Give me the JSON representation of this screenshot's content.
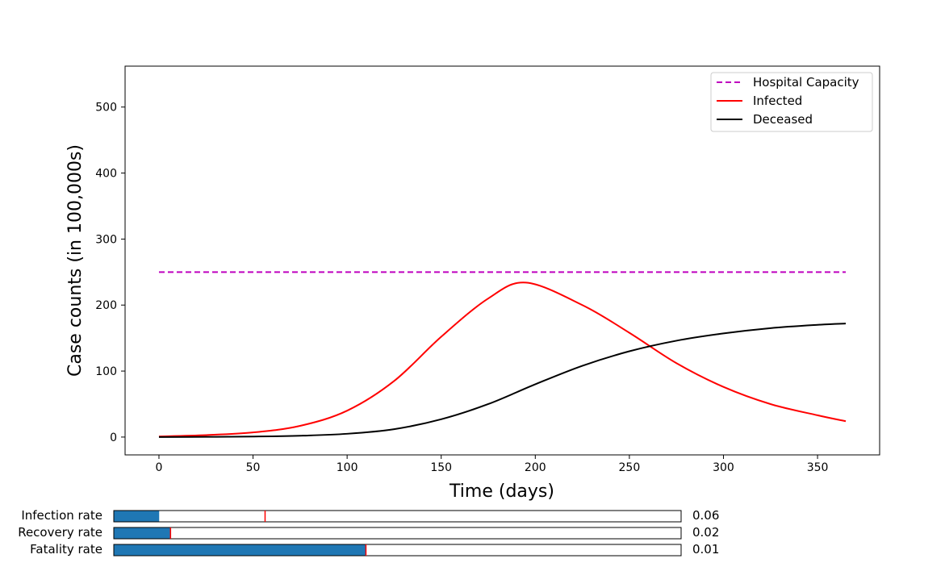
{
  "chart_data": {
    "type": "line",
    "xlabel": "Time (days)",
    "ylabel": "Case counts (in 100,000s)",
    "xlim": [
      -18,
      383
    ],
    "ylim": [
      -27,
      562
    ],
    "x_ticks": [
      0,
      50,
      100,
      150,
      200,
      250,
      300,
      350
    ],
    "y_ticks": [
      0,
      100,
      200,
      300,
      400,
      500
    ],
    "grid": false,
    "legend_position": "top-right",
    "series": [
      {
        "name": "Hospital Capacity",
        "color": "#bf00bf",
        "style": "dashed",
        "x": [
          0,
          365
        ],
        "y": [
          250,
          250
        ]
      },
      {
        "name": "Infected",
        "color": "#ff0000",
        "style": "solid",
        "x": [
          0,
          25,
          50,
          75,
          100,
          125,
          150,
          175,
          195,
          225,
          250,
          275,
          300,
          325,
          350,
          365
        ],
        "y": [
          1,
          3,
          7,
          17,
          40,
          85,
          152,
          210,
          234,
          200,
          158,
          112,
          76,
          50,
          33,
          24
        ]
      },
      {
        "name": "Deceased",
        "color": "#000000",
        "style": "solid",
        "x": [
          0,
          25,
          50,
          75,
          100,
          125,
          150,
          175,
          200,
          225,
          250,
          275,
          300,
          325,
          350,
          365
        ],
        "y": [
          0,
          0.3,
          0.8,
          2,
          5,
          12,
          27,
          50,
          80,
          108,
          130,
          146,
          157,
          165,
          170,
          172
        ]
      }
    ]
  },
  "sliders": [
    {
      "label": "Infection rate",
      "value": 0.06,
      "display": "0.06",
      "initial": 0.2,
      "min": 0,
      "max": 0.75
    },
    {
      "label": "Recovery rate",
      "value": 0.02,
      "display": "0.02",
      "initial": 0.02,
      "min": 0,
      "max": 0.2
    },
    {
      "label": "Fatality rate",
      "value": 0.01,
      "display": "0.01",
      "initial": 0.01,
      "min": 0,
      "max": 0.0225
    }
  ],
  "colors": {
    "slider_fill": "#1f77b4",
    "slider_marker": "#ff0000"
  }
}
